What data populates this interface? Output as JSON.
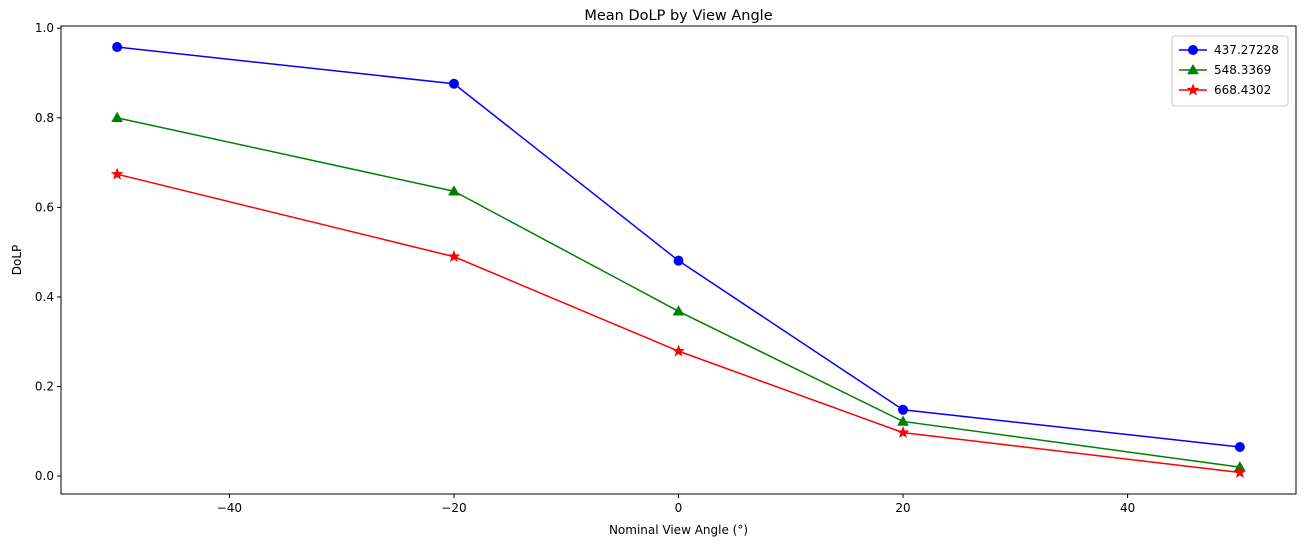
{
  "chart_data": {
    "type": "line",
    "title": "Mean DoLP by View Angle",
    "xlabel": "Nominal View Angle (°)",
    "ylabel": "DoLP",
    "xlim": [
      -55,
      55
    ],
    "ylim": [
      -0.04,
      1.005
    ],
    "xticks": [
      -40,
      -20,
      0,
      20,
      40
    ],
    "xtick_labels": [
      "−40",
      "−20",
      "0",
      "20",
      "40"
    ],
    "yticks": [
      0.0,
      0.2,
      0.4,
      0.6,
      0.8,
      1.0
    ],
    "ytick_labels": [
      "0.0",
      "0.2",
      "0.4",
      "0.6",
      "0.8",
      "1.0"
    ],
    "grid": false,
    "legend_position": "top-right",
    "x": [
      -50,
      -20,
      0,
      20,
      50
    ],
    "series": [
      {
        "name": "437.27228",
        "color": "#0000ff",
        "marker": "circle",
        "values": [
          0.958,
          0.876,
          0.481,
          0.148,
          0.065
        ]
      },
      {
        "name": "548.3369",
        "color": "#008000",
        "marker": "triangle-up",
        "values": [
          0.8,
          0.636,
          0.368,
          0.122,
          0.02
        ]
      },
      {
        "name": "668.4302",
        "color": "#ff0000",
        "marker": "star",
        "values": [
          0.674,
          0.49,
          0.279,
          0.097,
          0.008
        ]
      }
    ]
  }
}
